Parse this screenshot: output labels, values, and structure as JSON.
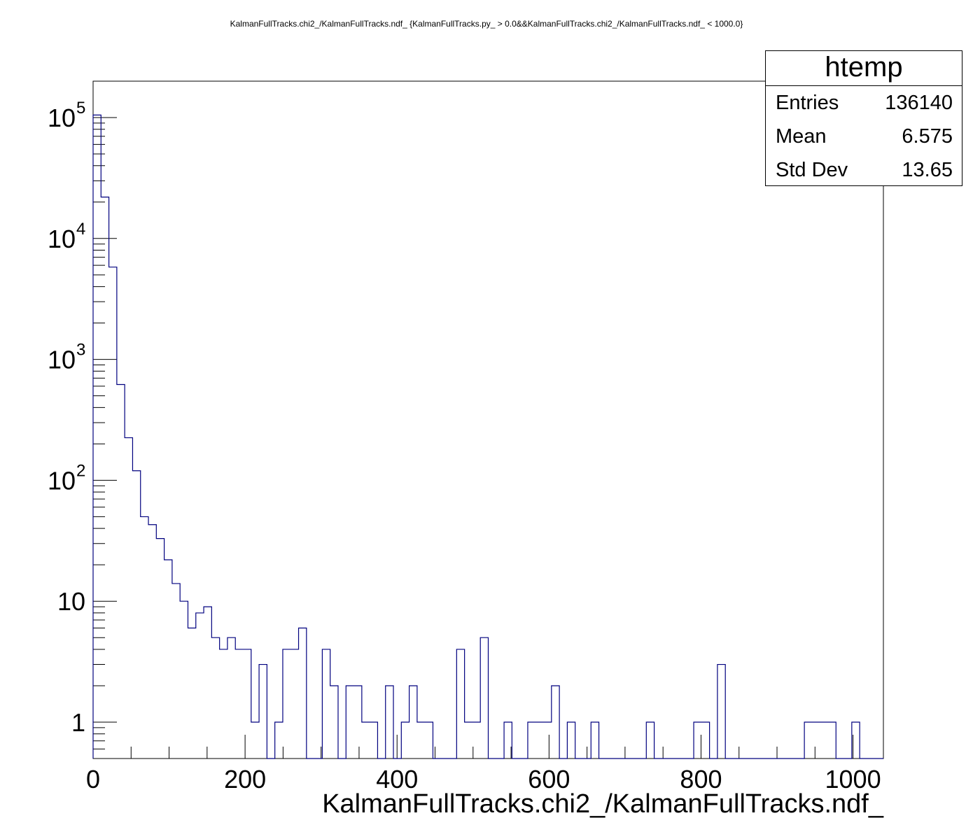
{
  "chart_data": {
    "type": "histogram",
    "title": "KalmanFullTracks.chi2_/KalmanFullTracks.ndf_ {KalmanFullTracks.py_ > 0.0&&KalmanFullTracks.chi2_/KalmanFullTracks.ndf_ < 1000.0}",
    "xlabel": "KalmanFullTracks.chi2_/KalmanFullTracks.ndf_",
    "ylabel": "",
    "xlim": [
      0,
      1040
    ],
    "ylim": [
      0.5,
      200000
    ],
    "yscale": "log",
    "bin_width": 10.4,
    "x_ticks": [
      "0",
      "200",
      "400",
      "600",
      "800",
      "1000"
    ],
    "x_tick_values": [
      0,
      200,
      400,
      600,
      800,
      1000
    ],
    "y_ticks": [
      {
        "value": 1,
        "base": "1",
        "exp": ""
      },
      {
        "value": 10,
        "base": "10",
        "exp": ""
      },
      {
        "value": 100,
        "base": "10",
        "exp": "2"
      },
      {
        "value": 1000,
        "base": "10",
        "exp": "3"
      },
      {
        "value": 10000,
        "base": "10",
        "exp": "4"
      },
      {
        "value": 100000,
        "base": "10",
        "exp": "5"
      }
    ],
    "line_color": "#00007f",
    "counts": [
      105000,
      22000,
      5800,
      620,
      225,
      120,
      50,
      43,
      33,
      22,
      14,
      10,
      6,
      8,
      9,
      5,
      4,
      5,
      4,
      4,
      1,
      3,
      0,
      1,
      4,
      4,
      6,
      0,
      0,
      4,
      2,
      0,
      2,
      2,
      1,
      1,
      0,
      2,
      0,
      1,
      2,
      1,
      1,
      0,
      0,
      0,
      4,
      1,
      1,
      5,
      0,
      0,
      1,
      0,
      0,
      1,
      1,
      1,
      2,
      0,
      1,
      0,
      0,
      1,
      0,
      0,
      0,
      0,
      0,
      0,
      1,
      0,
      0,
      0,
      0,
      0,
      1,
      1,
      0,
      3,
      0,
      0,
      0,
      0,
      0,
      0,
      0,
      0,
      0,
      0,
      1,
      1,
      1,
      1,
      0,
      0,
      1,
      0,
      0,
      0
    ],
    "stats_box": {
      "name": "htemp",
      "rows": [
        {
          "label": "Entries",
          "value": "136140"
        },
        {
          "label": "Mean",
          "value": "6.575"
        },
        {
          "label": "Std Dev",
          "value": "13.65"
        }
      ]
    }
  }
}
